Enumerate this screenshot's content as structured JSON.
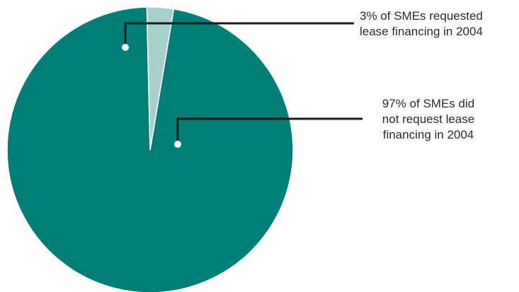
{
  "chart_data": {
    "type": "pie",
    "slices": [
      {
        "value": 97,
        "label_lines": [
          "97% of SMEs did",
          "not request lease",
          "financing in 2004"
        ],
        "color": "#007f78"
      },
      {
        "value": 3,
        "label_lines": [
          "3% of SMEs requested",
          "lease financing in 2004"
        ],
        "color": "#a7cfcb"
      }
    ],
    "legend": "none"
  }
}
